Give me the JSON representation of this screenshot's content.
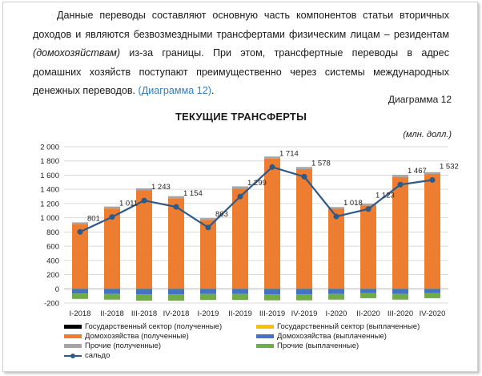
{
  "paragraph": {
    "part1": "Данные переводы составляют основную часть компонентов статьи вторичных доходов и являются безвозмездными трансфертами физическим лицам – резидентам ",
    "italic": "(домохозяйствам)",
    "part2": " из-за границы. При этом, трансфертные переводы в адрес домашних хозяйств поступают преимущественно через системы международных денежных переводов. ",
    "link": "(Диаграмма 12)",
    "tail": "."
  },
  "diagram_label": "Диаграмма 12",
  "chart_title": "ТЕКУЩИЕ ТРАНСФЕРТЫ",
  "unit_label": "(млн. долл.)",
  "legend": [
    {
      "label": "Государственный сектор (полученные)",
      "color": "#000000",
      "kind": "bar"
    },
    {
      "label": "Государственный сектор (выплаченные)",
      "color": "#ffc000",
      "kind": "bar"
    },
    {
      "label": "Домохозяйства (полученные)",
      "color": "#ed7d31",
      "kind": "bar"
    },
    {
      "label": "Домохозяйства (выплаченные)",
      "color": "#4472c4",
      "kind": "bar"
    },
    {
      "label": "Прочие (полученные)",
      "color": "#a5a5a5",
      "kind": "bar"
    },
    {
      "label": "Прочие (выплаченные)",
      "color": "#70ad47",
      "kind": "bar"
    },
    {
      "label": "сальдо",
      "color": "#2e5a88",
      "kind": "line"
    }
  ],
  "chart_data": {
    "type": "bar",
    "title": "ТЕКУЩИЕ ТРАНСФЕРТЫ",
    "unit": "(млн. долл.)",
    "stacked": true,
    "categories": [
      "I-2018",
      "II-2018",
      "III-2018",
      "IV-2018",
      "I-2019",
      "II-2019",
      "III-2019",
      "IV-2019",
      "I-2020",
      "II-2020",
      "III-2020",
      "IV-2020"
    ],
    "ylim": [
      -200,
      2000
    ],
    "yticks": [
      -200,
      0,
      200,
      400,
      600,
      800,
      1000,
      1200,
      1400,
      1600,
      1800,
      2000
    ],
    "ytick_labels": [
      "-200",
      "0",
      "200",
      "400",
      "600",
      "800",
      "1 000",
      "1 200",
      "1 400",
      "1 600",
      "1 800",
      "2 000"
    ],
    "grid": true,
    "legend_position": "bottom",
    "series": [
      {
        "name": "Государственный сектор (полученные)",
        "color": "#000000",
        "values": [
          2,
          2,
          2,
          2,
          2,
          2,
          2,
          2,
          2,
          2,
          2,
          2
        ]
      },
      {
        "name": "Домохозяйства (полученные)",
        "color": "#ed7d31",
        "values": [
          908,
          1128,
          1383,
          1272,
          968,
          1410,
          1830,
          1683,
          1124,
          1170,
          1572,
          1615
        ]
      },
      {
        "name": "Прочие (полученные)",
        "color": "#a5a5a5",
        "values": [
          25,
          28,
          30,
          30,
          25,
          30,
          30,
          30,
          25,
          25,
          30,
          25
        ]
      },
      {
        "name": "Государственный сектор (выплаченные)",
        "color": "#ffc000",
        "values": [
          -2,
          -2,
          -2,
          -2,
          -2,
          -2,
          -2,
          -2,
          -2,
          -2,
          -2,
          -2
        ]
      },
      {
        "name": "Домохозяйства (выплаченные)",
        "color": "#4472c4",
        "values": [
          -65,
          -70,
          -75,
          -75,
          -70,
          -70,
          -75,
          -75,
          -70,
          -60,
          -70,
          -60
        ]
      },
      {
        "name": "Прочие (выплаченные)",
        "color": "#70ad47",
        "values": [
          -75,
          -80,
          -90,
          -90,
          -85,
          -85,
          -85,
          -85,
          -80,
          -70,
          -80,
          -70
        ]
      }
    ],
    "line": {
      "name": "сальдо",
      "color": "#2e5a88",
      "values": [
        801,
        1011,
        1243,
        1154,
        863,
        1299,
        1714,
        1578,
        1018,
        1123,
        1467,
        1532
      ]
    },
    "data_labels": [
      "801",
      "1 011",
      "1 243",
      "1 154",
      "863",
      "1 299",
      "1 714",
      "1 578",
      "1 018",
      "1 123",
      "1 467",
      "1 532"
    ]
  }
}
